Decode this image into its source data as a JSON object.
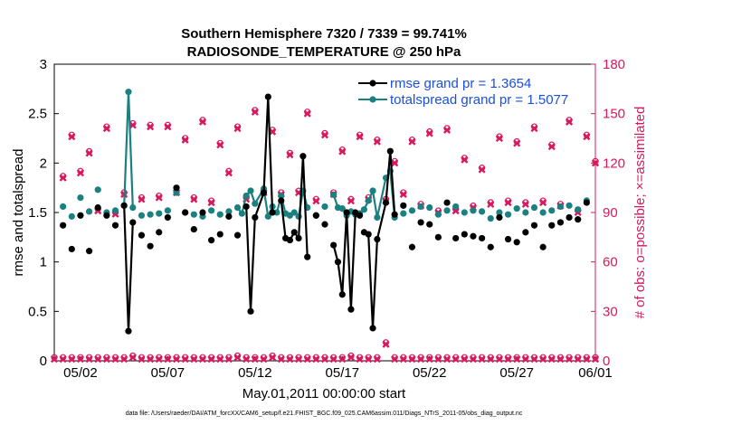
{
  "title_line1": "Southern Hemisphere 7320 / 7339 = 99.741%",
  "title_line2": "RADIOSONDE_TEMPERATURE @ 250 hPa",
  "xlabel": "May.01,2011 00:00:00 start",
  "ylabel_left": "rmse and totalspread",
  "ylabel_right": "# of obs: o=possible; ×=assimilated",
  "footnote": "data file: /Users/raeder/DAI/ATM_forcXX/CAM6_setup/f.e21.FHIST_BGC.f09_025.CAM6assim.011/Diags_NTrS_2011-05/obs_diag_output.nc",
  "colors": {
    "rmse": "#000000",
    "spread": "#1a8080",
    "obs": "#d9185e",
    "legend_text": "#1a4fe0",
    "right_axis": "#d9185e"
  },
  "chart_data": {
    "type": "line",
    "x_range": [
      0.5,
      31.5
    ],
    "x_ticks": [
      {
        "x": 2,
        "label": "05/02"
      },
      {
        "x": 7,
        "label": "05/07"
      },
      {
        "x": 12,
        "label": "05/12"
      },
      {
        "x": 17,
        "label": "05/17"
      },
      {
        "x": 22,
        "label": "05/22"
      },
      {
        "x": 27,
        "label": "05/27"
      },
      {
        "x": 32,
        "label": "06/01"
      }
    ],
    "ylim_left": [
      0,
      3
    ],
    "yticks_left": [
      "0",
      "0.5",
      "1",
      "1.5",
      "2",
      "2.5",
      "3"
    ],
    "ylim_right": [
      0,
      180
    ],
    "yticks_right": [
      "0",
      "30",
      "60",
      "90",
      "120",
      "150",
      "180"
    ],
    "grid": false,
    "legend_position": "top-right",
    "legend": [
      {
        "key": "rmse",
        "label": "rmse grand pr = 1.3654"
      },
      {
        "key": "spread",
        "label": "totalspread grand pr = 1.5077"
      }
    ],
    "rmse_points": [
      [
        1.0,
        1.37
      ],
      [
        1.5,
        1.13
      ],
      [
        2.0,
        1.47
      ],
      [
        2.5,
        1.11
      ],
      [
        3.0,
        1.55
      ],
      [
        3.5,
        1.47
      ],
      [
        4.0,
        1.37
      ],
      [
        4.5,
        1.57
      ],
      [
        4.75,
        0.3
      ],
      [
        5.0,
        1.4
      ],
      [
        5.5,
        1.27
      ],
      [
        6.0,
        1.16
      ],
      [
        6.5,
        1.3
      ],
      [
        7.0,
        1.45
      ],
      [
        7.5,
        1.75
      ],
      [
        8.0,
        1.5
      ],
      [
        8.5,
        1.33
      ],
      [
        9.0,
        1.5
      ],
      [
        9.5,
        1.22
      ],
      [
        10.0,
        1.28
      ],
      [
        10.5,
        1.46
      ],
      [
        11.0,
        1.27
      ],
      [
        11.5,
        1.56
      ],
      [
        11.75,
        0.5
      ],
      [
        12.0,
        1.45
      ],
      [
        12.5,
        1.7
      ],
      [
        12.75,
        2.67
      ],
      [
        13.0,
        1.5
      ],
      [
        13.5,
        1.62
      ],
      [
        13.75,
        1.24
      ],
      [
        14.0,
        1.22
      ],
      [
        14.25,
        1.3
      ],
      [
        14.5,
        1.24
      ],
      [
        14.75,
        2.07
      ],
      [
        15.0,
        1.05
      ],
      [
        15.5,
        1.47
      ],
      [
        16.0,
        1.38
      ],
      [
        16.5,
        1.17
      ],
      [
        16.75,
        1.0
      ],
      [
        17.0,
        0.67
      ],
      [
        17.25,
        1.5
      ],
      [
        17.5,
        0.52
      ],
      [
        17.75,
        1.5
      ],
      [
        18.0,
        1.47
      ],
      [
        18.25,
        1.3
      ],
      [
        18.5,
        1.28
      ],
      [
        18.75,
        0.33
      ],
      [
        19.0,
        1.23
      ],
      [
        19.5,
        1.6
      ],
      [
        19.75,
        2.12
      ],
      [
        20.0,
        1.48
      ],
      [
        20.5,
        1.57
      ],
      [
        21.0,
        1.15
      ],
      [
        21.5,
        1.4
      ],
      [
        22.0,
        1.38
      ],
      [
        22.5,
        1.25
      ],
      [
        23.0,
        1.6
      ],
      [
        23.5,
        1.24
      ],
      [
        24.0,
        1.28
      ],
      [
        24.5,
        1.26
      ],
      [
        25.0,
        1.24
      ],
      [
        25.5,
        1.15
      ],
      [
        26.0,
        1.45
      ],
      [
        26.5,
        1.23
      ],
      [
        27.0,
        1.2
      ],
      [
        27.5,
        1.3
      ],
      [
        28.0,
        1.37
      ],
      [
        28.5,
        1.15
      ],
      [
        29.0,
        1.37
      ],
      [
        29.5,
        1.4
      ],
      [
        30.0,
        1.45
      ],
      [
        30.5,
        1.43
      ],
      [
        31.0,
        1.6
      ]
    ],
    "rmse_line_segments": [
      [
        [
          4.5,
          1.57
        ],
        [
          4.75,
          0.3
        ],
        [
          5.0,
          1.4
        ]
      ],
      [
        [
          11.5,
          1.56
        ],
        [
          11.75,
          0.5
        ],
        [
          12.0,
          1.45
        ],
        [
          12.5,
          1.7
        ],
        [
          12.75,
          2.67
        ],
        [
          13.0,
          1.5
        ]
      ],
      [
        [
          13.5,
          1.62
        ],
        [
          13.75,
          1.24
        ],
        [
          14.0,
          1.22
        ],
        [
          14.25,
          1.3
        ],
        [
          14.5,
          1.24
        ],
        [
          14.75,
          2.07
        ],
        [
          15.0,
          1.05
        ]
      ],
      [
        [
          16.5,
          1.17
        ],
        [
          16.75,
          1.0
        ],
        [
          17.0,
          0.67
        ],
        [
          17.25,
          1.5
        ],
        [
          17.5,
          0.52
        ],
        [
          17.75,
          1.5
        ]
      ],
      [
        [
          18.25,
          1.3
        ],
        [
          18.5,
          1.28
        ],
        [
          18.75,
          0.33
        ],
        [
          19.0,
          1.23
        ],
        [
          19.5,
          1.6
        ],
        [
          19.75,
          2.12
        ],
        [
          20.0,
          1.48
        ]
      ]
    ],
    "spread_points": [
      [
        1.0,
        1.56
      ],
      [
        1.5,
        1.46
      ],
      [
        2.0,
        1.65
      ],
      [
        2.5,
        1.51
      ],
      [
        3.0,
        1.73
      ],
      [
        3.5,
        1.5
      ],
      [
        4.0,
        1.52
      ],
      [
        4.5,
        1.57
      ],
      [
        4.75,
        2.72
      ],
      [
        5.0,
        1.55
      ],
      [
        5.5,
        1.47
      ],
      [
        6.0,
        1.48
      ],
      [
        6.5,
        1.49
      ],
      [
        7.0,
        1.52
      ],
      [
        7.5,
        1.7
      ],
      [
        8.0,
        1.5
      ],
      [
        8.5,
        1.48
      ],
      [
        9.0,
        1.46
      ],
      [
        9.5,
        1.52
      ],
      [
        10.0,
        1.48
      ],
      [
        10.5,
        1.51
      ],
      [
        11.0,
        1.55
      ],
      [
        11.25,
        1.49
      ],
      [
        11.5,
        1.67
      ],
      [
        11.75,
        1.72
      ],
      [
        12.0,
        1.59
      ],
      [
        12.5,
        1.74
      ],
      [
        12.75,
        1.46
      ],
      [
        13.0,
        1.56
      ],
      [
        13.25,
        1.5
      ],
      [
        13.5,
        1.67
      ],
      [
        13.75,
        1.49
      ],
      [
        14.0,
        1.47
      ],
      [
        14.25,
        1.5
      ],
      [
        14.5,
        1.46
      ],
      [
        14.75,
        1.72
      ],
      [
        15.0,
        1.55
      ],
      [
        15.5,
        1.47
      ],
      [
        16.0,
        1.56
      ],
      [
        16.5,
        1.68
      ],
      [
        16.75,
        1.55
      ],
      [
        17.0,
        1.54
      ],
      [
        17.25,
        1.47
      ],
      [
        17.5,
        1.51
      ],
      [
        17.75,
        1.48
      ],
      [
        18.0,
        1.49
      ],
      [
        18.25,
        1.53
      ],
      [
        18.5,
        1.62
      ],
      [
        18.75,
        1.72
      ],
      [
        19.0,
        1.45
      ],
      [
        19.5,
        1.85
      ],
      [
        19.75,
        1.92
      ],
      [
        20.0,
        1.45
      ],
      [
        20.5,
        1.49
      ],
      [
        21.0,
        1.52
      ],
      [
        21.5,
        1.56
      ],
      [
        22.0,
        1.55
      ],
      [
        22.5,
        1.48
      ],
      [
        23.0,
        1.52
      ],
      [
        23.5,
        1.56
      ],
      [
        24.0,
        1.5
      ],
      [
        24.5,
        1.52
      ],
      [
        25.0,
        1.51
      ],
      [
        25.5,
        1.44
      ],
      [
        26.0,
        1.5
      ],
      [
        26.5,
        1.48
      ],
      [
        27.0,
        1.54
      ],
      [
        27.5,
        1.5
      ],
      [
        28.0,
        1.55
      ],
      [
        28.5,
        1.5
      ],
      [
        29.0,
        1.52
      ],
      [
        29.5,
        1.56
      ],
      [
        30.0,
        1.57
      ],
      [
        30.5,
        1.53
      ],
      [
        31.0,
        1.62
      ]
    ],
    "spread_line_segments": [
      [
        [
          4.5,
          1.57
        ],
        [
          4.75,
          2.72
        ],
        [
          5.0,
          1.55
        ]
      ],
      [
        [
          11.0,
          1.55
        ],
        [
          11.25,
          1.49
        ],
        [
          11.5,
          1.67
        ],
        [
          11.75,
          1.72
        ],
        [
          12.0,
          1.59
        ],
        [
          12.5,
          1.74
        ],
        [
          12.75,
          1.46
        ],
        [
          13.0,
          1.56
        ]
      ],
      [
        [
          13.25,
          1.5
        ],
        [
          13.5,
          1.67
        ],
        [
          13.75,
          1.49
        ],
        [
          14.0,
          1.47
        ],
        [
          14.25,
          1.5
        ],
        [
          14.5,
          1.46
        ],
        [
          14.75,
          1.72
        ],
        [
          15.0,
          1.55
        ]
      ],
      [
        [
          16.5,
          1.68
        ],
        [
          16.75,
          1.55
        ],
        [
          17.0,
          1.54
        ],
        [
          17.25,
          1.47
        ],
        [
          17.5,
          1.51
        ],
        [
          17.75,
          1.48
        ]
      ],
      [
        [
          18.25,
          1.53
        ],
        [
          18.5,
          1.62
        ],
        [
          18.75,
          1.72
        ],
        [
          19.0,
          1.45
        ],
        [
          19.5,
          1.85
        ],
        [
          19.75,
          1.92
        ],
        [
          20.0,
          1.45
        ]
      ]
    ],
    "obs_points": [
      [
        1.0,
        111
      ],
      [
        1.5,
        136
      ],
      [
        2.0,
        114
      ],
      [
        2.5,
        126
      ],
      [
        3.0,
        91
      ],
      [
        3.5,
        141
      ],
      [
        4.0,
        89
      ],
      [
        4.5,
        101
      ],
      [
        5.0,
        143
      ],
      [
        5.5,
        98
      ],
      [
        6.0,
        142
      ],
      [
        6.5,
        99
      ],
      [
        7.0,
        142
      ],
      [
        7.5,
        102
      ],
      [
        8.0,
        134
      ],
      [
        8.5,
        98
      ],
      [
        9.0,
        145
      ],
      [
        9.5,
        96
      ],
      [
        10.0,
        131
      ],
      [
        10.5,
        114
      ],
      [
        11.0,
        141
      ],
      [
        11.5,
        98
      ],
      [
        12.0,
        151
      ],
      [
        12.5,
        102
      ],
      [
        13.0,
        139
      ],
      [
        13.5,
        101
      ],
      [
        14.0,
        125
      ],
      [
        14.5,
        102
      ],
      [
        15.0,
        150
      ],
      [
        15.5,
        97
      ],
      [
        16.0,
        137
      ],
      [
        16.5,
        101
      ],
      [
        17.0,
        127
      ],
      [
        17.5,
        97
      ],
      [
        18.0,
        136
      ],
      [
        18.5,
        98
      ],
      [
        19.0,
        133
      ],
      [
        19.5,
        97
      ],
      [
        20.0,
        120
      ],
      [
        20.5,
        101
      ],
      [
        21.0,
        133
      ],
      [
        21.5,
        94
      ],
      [
        22.0,
        138
      ],
      [
        22.5,
        90
      ],
      [
        23.0,
        140
      ],
      [
        23.5,
        91
      ],
      [
        24.0,
        122
      ],
      [
        24.5,
        93
      ],
      [
        25.0,
        116
      ],
      [
        25.5,
        95
      ],
      [
        26.0,
        135
      ],
      [
        26.5,
        96
      ],
      [
        27.0,
        132
      ],
      [
        27.5,
        95
      ],
      [
        28.0,
        141
      ],
      [
        28.5,
        96
      ],
      [
        29.0,
        130
      ],
      [
        29.5,
        94
      ],
      [
        30.0,
        145
      ],
      [
        30.5,
        90
      ],
      [
        31.0,
        136
      ],
      [
        31.5,
        120
      ]
    ],
    "obs_low": [
      [
        0.5,
        1
      ],
      [
        1.0,
        1
      ],
      [
        1.5,
        1
      ],
      [
        2.0,
        1
      ],
      [
        2.5,
        1
      ],
      [
        3.0,
        1
      ],
      [
        3.5,
        1
      ],
      [
        4.0,
        1
      ],
      [
        4.5,
        1
      ],
      [
        5.0,
        2
      ],
      [
        5.5,
        1
      ],
      [
        6.0,
        1
      ],
      [
        6.5,
        1
      ],
      [
        7.0,
        1
      ],
      [
        7.5,
        1
      ],
      [
        8.0,
        1
      ],
      [
        8.5,
        1
      ],
      [
        9.0,
        1
      ],
      [
        9.5,
        1
      ],
      [
        10.0,
        1
      ],
      [
        10.5,
        1
      ],
      [
        11.0,
        2
      ],
      [
        11.5,
        1
      ],
      [
        12.0,
        1
      ],
      [
        12.5,
        1
      ],
      [
        13.0,
        2
      ],
      [
        13.5,
        1
      ],
      [
        14.0,
        1
      ],
      [
        14.5,
        1
      ],
      [
        15.0,
        1
      ],
      [
        15.5,
        1
      ],
      [
        16.0,
        1
      ],
      [
        16.5,
        1
      ],
      [
        17.0,
        1
      ],
      [
        17.5,
        2
      ],
      [
        18.0,
        1
      ],
      [
        18.5,
        1
      ],
      [
        19.0,
        1
      ],
      [
        19.5,
        10
      ],
      [
        20.0,
        1
      ],
      [
        20.5,
        1
      ],
      [
        21.0,
        1
      ],
      [
        21.5,
        1
      ],
      [
        22.0,
        1
      ],
      [
        22.5,
        1
      ],
      [
        23.0,
        1
      ],
      [
        23.5,
        1
      ],
      [
        24.0,
        1
      ],
      [
        24.5,
        1
      ],
      [
        25.0,
        1
      ],
      [
        25.5,
        1
      ],
      [
        26.0,
        1
      ],
      [
        26.5,
        1
      ],
      [
        27.0,
        1
      ],
      [
        27.5,
        1
      ],
      [
        28.0,
        1
      ],
      [
        28.5,
        1
      ],
      [
        29.0,
        1
      ],
      [
        29.5,
        1
      ],
      [
        30.0,
        1
      ],
      [
        30.5,
        1
      ],
      [
        31.0,
        1
      ],
      [
        31.5,
        1
      ]
    ]
  }
}
